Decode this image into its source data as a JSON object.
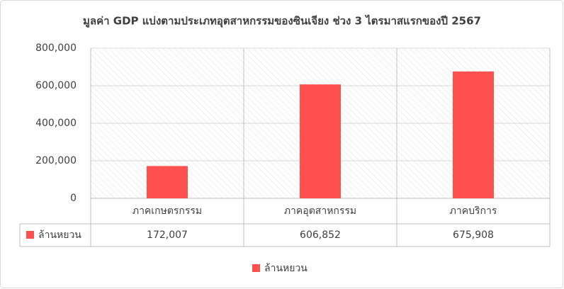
{
  "chart_data": {
    "type": "bar",
    "title": "มูลค่า GDP แบ่งตามประเภทอุตสาหกรรมของซินเจียง ช่วง 3 ไตรมาสแรกของปี 2567",
    "categories": [
      "ภาคเกษตรกรรม",
      "ภาคอุตสาหกรรม",
      "ภาคบริการ"
    ],
    "series": [
      {
        "name": "ล้านหยวน",
        "color": "#ff5050",
        "values": [
          172007,
          606852,
          675908
        ],
        "value_labels": [
          "172,007",
          "606,852",
          "675,908"
        ]
      }
    ],
    "ylim": [
      0,
      800000
    ],
    "yticks": [
      0,
      {
        "value": 200000,
        "label": "200,000"
      },
      {
        "value": 400000,
        "label": "400,000"
      },
      {
        "value": 600000,
        "label": "600,000"
      },
      {
        "value": 800000,
        "label": "800,000"
      }
    ],
    "grid": true,
    "legend": "bottom"
  }
}
